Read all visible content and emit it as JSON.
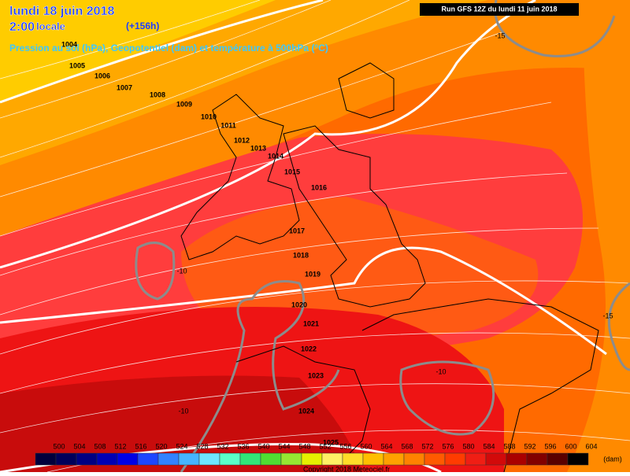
{
  "header": {
    "date": "lundi 18 juin 2018",
    "time": "2:00",
    "time_suffix": "locale",
    "lead": "(+156h)",
    "subtitle": "Pression au sol (hPa), Geopotentiel (dam) et température à 500hPa (°C)",
    "run": "Run GFS 12Z du lundi 11 juin 2018"
  },
  "isobar_labels": [
    "1004",
    "1005",
    "1006",
    "1007",
    "1008",
    "1009",
    "1010",
    "1011",
    "1012",
    "1013",
    "1014",
    "1015",
    "1016",
    "1017",
    "1018",
    "1019",
    "1020",
    "1021",
    "1022",
    "1023",
    "1024",
    "1025"
  ],
  "temperature_labels": [
    "-15",
    "-10",
    "-10",
    "-10",
    "-15"
  ],
  "legend": {
    "ticks": [
      500,
      504,
      508,
      512,
      516,
      520,
      524,
      528,
      532,
      536,
      540,
      544,
      548,
      552,
      556,
      560,
      564,
      568,
      572,
      576,
      580,
      584,
      588,
      592,
      596,
      600,
      604
    ],
    "colors": [
      "#00003c",
      "#00005a",
      "#000082",
      "#0000b4",
      "#0000e6",
      "#1e46ff",
      "#3282ff",
      "#46b4ff",
      "#6ee6ff",
      "#5affc8",
      "#32e678",
      "#50dc32",
      "#96e632",
      "#e6f000",
      "#fff064",
      "#ffdc28",
      "#ffbe00",
      "#ffa000",
      "#ff8200",
      "#ff5a00",
      "#ff3c00",
      "#f01e14",
      "#d20a0a",
      "#aa0000",
      "#820000",
      "#5a0000",
      "#000000"
    ],
    "unit": "(dam)"
  },
  "copyright": "Copyright 2018 Meteociel.fr"
}
